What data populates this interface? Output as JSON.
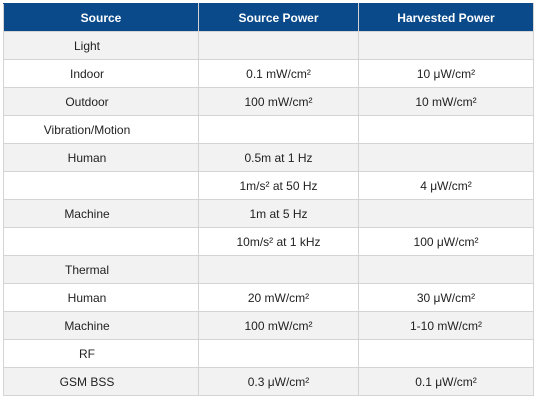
{
  "table": {
    "headers": [
      "Source",
      "Source Power",
      "Harvested Power"
    ],
    "rows": [
      [
        "Light",
        "",
        ""
      ],
      [
        "Indoor",
        "0.1 mW/cm²",
        "10 μW/cm²"
      ],
      [
        "Outdoor",
        "100 mW/cm²",
        "10 mW/cm²"
      ],
      [
        "Vibration/Motion",
        "",
        ""
      ],
      [
        "Human",
        "0.5m at 1 Hz",
        ""
      ],
      [
        "",
        "1m/s² at 50 Hz",
        "4 μW/cm²"
      ],
      [
        "Machine",
        "1m at 5 Hz",
        ""
      ],
      [
        "",
        "10m/s² at 1 kHz",
        "100 μW/cm²"
      ],
      [
        "Thermal",
        "",
        ""
      ],
      [
        "Human",
        "20 mW/cm²",
        "30 μW/cm²"
      ],
      [
        "Machine",
        "100 mW/cm²",
        "1-10 mW/cm²"
      ],
      [
        "RF",
        "",
        ""
      ],
      [
        "GSM BSS",
        "0.3 μW/cm²",
        "0.1 μW/cm²"
      ]
    ]
  },
  "colors": {
    "header_bg": "#0a4a8a",
    "header_text": "#ffffff",
    "alt_row_bg": "#f2f2f2",
    "border": "#d4d4d4"
  }
}
